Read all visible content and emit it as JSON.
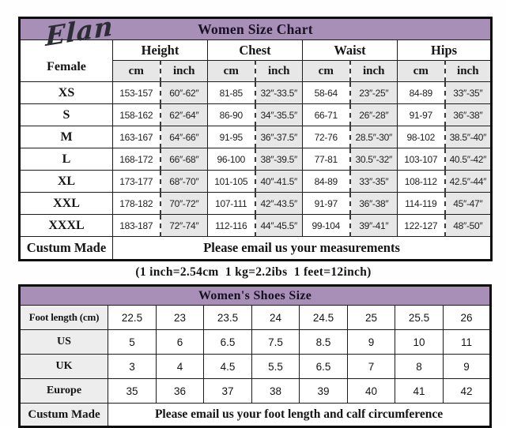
{
  "size_chart": {
    "title": "Women Size Chart",
    "brand": "Elan",
    "subtitle": "Female",
    "column_groups": [
      "Height",
      "Chest",
      "Waist",
      "Hips"
    ],
    "unit_headers": [
      "cm",
      "inch",
      "cm",
      "inch",
      "cm",
      "inch",
      "cm",
      "inch"
    ],
    "rows": [
      {
        "size": "XS",
        "values": [
          "153-157",
          "60″-62″",
          "81-85",
          "32″-33.5″",
          "58-64",
          "23″-25″",
          "84-89",
          "33″-35″"
        ]
      },
      {
        "size": "S",
        "values": [
          "158-162",
          "62″-64″",
          "86-90",
          "34″-35.5″",
          "66-71",
          "26″-28″",
          "91-97",
          "36″-38″"
        ]
      },
      {
        "size": "M",
        "values": [
          "163-167",
          "64″-66″",
          "91-95",
          "36″-37.5″",
          "72-76",
          "28.5″-30″",
          "98-102",
          "38.5″-40″"
        ]
      },
      {
        "size": "L",
        "values": [
          "168-172",
          "66″-68″",
          "96-100",
          "38″-39.5″",
          "77-81",
          "30.5″-32″",
          "103-107",
          "40.5″-42″"
        ]
      },
      {
        "size": "XL",
        "values": [
          "173-177",
          "68″-70″",
          "101-105",
          "40″-41.5″",
          "84-89",
          "33″-35″",
          "108-112",
          "42.5″-44″"
        ]
      },
      {
        "size": "XXL",
        "values": [
          "178-182",
          "70″-72″",
          "107-111",
          "42″-43.5″",
          "91-97",
          "36″-38″",
          "114-119",
          "45″-47″"
        ]
      },
      {
        "size": "XXXL",
        "values": [
          "183-187",
          "72″-74″",
          "112-116",
          "44″-45.5″",
          "99-104",
          "39″-41″",
          "122-127",
          "48″-50″"
        ]
      }
    ],
    "custom_row": {
      "label": "Custum Made",
      "message": "Please email us your measurements"
    }
  },
  "conversion_note": "(1 inch=2.54cm  1 kg=2.2ibs  1 feet=12inch)",
  "shoes_chart": {
    "title": "Women's Shoes Size",
    "rows": [
      {
        "label": "Foot length (cm)",
        "values": [
          "22.5",
          "23",
          "23.5",
          "24",
          "24.5",
          "25",
          "25.5",
          "26"
        ]
      },
      {
        "label": "US",
        "values": [
          "5",
          "6",
          "6.5",
          "7.5",
          "8.5",
          "9",
          "10",
          "11"
        ]
      },
      {
        "label": "UK",
        "values": [
          "3",
          "4",
          "4.5",
          "5.5",
          "6.5",
          "7",
          "8",
          "9"
        ]
      },
      {
        "label": "Europe",
        "values": [
          "35",
          "36",
          "37",
          "38",
          "39",
          "40",
          "41",
          "42"
        ]
      }
    ],
    "custom_row": {
      "label": "Custum Made",
      "message": "Please email us your foot length and calf circumference"
    }
  },
  "colors": {
    "header_purple": "#a78fb8",
    "shade_gray": "#e7e7e7",
    "border": "#1c1c1c"
  }
}
